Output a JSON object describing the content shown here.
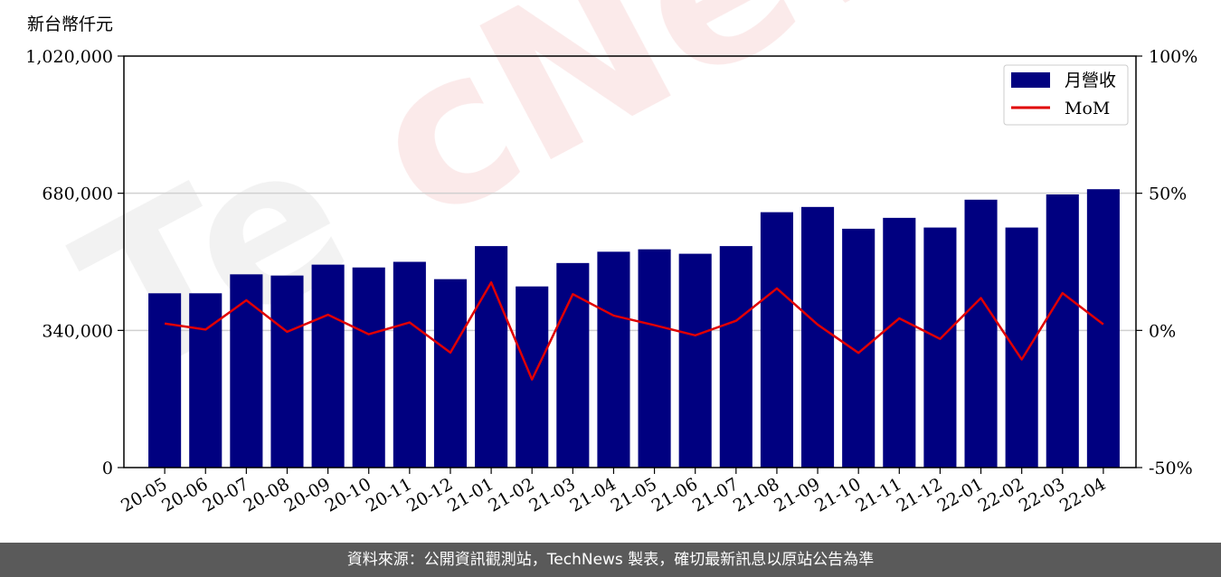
{
  "chart_data": {
    "type": "bar",
    "y_unit_label": "新台幣仟元",
    "categories": [
      "20-05",
      "20-06",
      "20-07",
      "20-08",
      "20-09",
      "20-10",
      "20-11",
      "20-12",
      "21-01",
      "21-02",
      "21-03",
      "21-04",
      "21-05",
      "21-06",
      "21-07",
      "21-08",
      "21-09",
      "21-10",
      "21-11",
      "21-12",
      "22-01",
      "22-02",
      "22-03",
      "22-04"
    ],
    "series": [
      {
        "name": "月營收",
        "axis": "left",
        "kind": "bar",
        "color": "#000080",
        "values": [
          432000,
          432000,
          479000,
          476000,
          503000,
          496000,
          510000,
          467000,
          549000,
          449000,
          507000,
          535000,
          541000,
          530000,
          549000,
          633000,
          646000,
          592000,
          619000,
          595000,
          664000,
          595000,
          677000,
          690000
        ]
      },
      {
        "name": "MoM",
        "axis": "right",
        "kind": "line",
        "color": "#e00000",
        "values": [
          2.5,
          0.3,
          11,
          -0.5,
          5.7,
          -1.4,
          2.9,
          -8.1,
          17.5,
          -17.9,
          13.2,
          5.4,
          1.9,
          -1.8,
          3.5,
          15.3,
          2.1,
          -8.2,
          4.4,
          -3.1,
          11.8,
          -10.6,
          13.6,
          2.2
        ]
      }
    ],
    "yleft": {
      "min": 0,
      "max": 1020000,
      "ticks": [
        0,
        340000,
        680000,
        1020000
      ],
      "tick_labels": [
        "0",
        "340,000",
        "680,000",
        "1,020,000"
      ]
    },
    "yright": {
      "min": -50,
      "max": 100,
      "ticks": [
        -50,
        0,
        50,
        100
      ],
      "tick_labels": [
        "-50%",
        "0%",
        "50%",
        "100%"
      ]
    },
    "grid": "horizontal",
    "legend_position": "top-right",
    "watermark": "TechNews"
  },
  "footer": {
    "text": "資料來源：公開資訊觀測站，TechNews 製表，確切最新訊息以原站公告為準"
  }
}
